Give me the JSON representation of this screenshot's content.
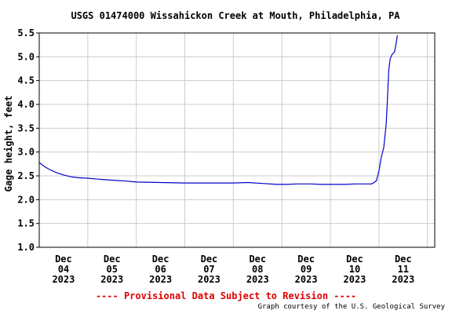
{
  "chart_data": {
    "type": "line",
    "title": "USGS 01474000 Wissahickon Creek at Mouth, Philadelphia, PA",
    "ylabel": "Gage height, feet",
    "xlabel": "",
    "ylim": [
      1.0,
      5.5
    ],
    "yticks": [
      "1.0",
      "1.5",
      "2.0",
      "2.5",
      "3.0",
      "3.5",
      "4.0",
      "4.5",
      "5.0",
      "5.5"
    ],
    "xlim_days": [
      0,
      8.15
    ],
    "xticks": [
      {
        "day": 0.5,
        "l1": "Dec",
        "l2": "04",
        "l3": "2023"
      },
      {
        "day": 1.5,
        "l1": "Dec",
        "l2": "05",
        "l3": "2023"
      },
      {
        "day": 2.5,
        "l1": "Dec",
        "l2": "06",
        "l3": "2023"
      },
      {
        "day": 3.5,
        "l1": "Dec",
        "l2": "07",
        "l3": "2023"
      },
      {
        "day": 4.5,
        "l1": "Dec",
        "l2": "08",
        "l3": "2023"
      },
      {
        "day": 5.5,
        "l1": "Dec",
        "l2": "09",
        "l3": "2023"
      },
      {
        "day": 6.5,
        "l1": "Dec",
        "l2": "10",
        "l3": "2023"
      },
      {
        "day": 7.5,
        "l1": "Dec",
        "l2": "11",
        "l3": "2023"
      }
    ],
    "grid": true,
    "series": [
      {
        "color": "#0000cc",
        "points": [
          [
            0.0,
            2.78
          ],
          [
            0.1,
            2.7
          ],
          [
            0.2,
            2.64
          ],
          [
            0.35,
            2.57
          ],
          [
            0.5,
            2.52
          ],
          [
            0.65,
            2.48
          ],
          [
            0.8,
            2.46
          ],
          [
            1.0,
            2.45
          ],
          [
            1.2,
            2.43
          ],
          [
            1.5,
            2.41
          ],
          [
            1.8,
            2.39
          ],
          [
            2.0,
            2.37
          ],
          [
            2.5,
            2.36
          ],
          [
            3.0,
            2.35
          ],
          [
            3.5,
            2.35
          ],
          [
            4.0,
            2.35
          ],
          [
            4.3,
            2.36
          ],
          [
            4.6,
            2.34
          ],
          [
            4.9,
            2.32
          ],
          [
            5.1,
            2.32
          ],
          [
            5.3,
            2.33
          ],
          [
            5.6,
            2.33
          ],
          [
            5.8,
            2.32
          ],
          [
            6.0,
            2.32
          ],
          [
            6.3,
            2.32
          ],
          [
            6.5,
            2.33
          ],
          [
            6.7,
            2.33
          ],
          [
            6.85,
            2.33
          ],
          [
            6.9,
            2.36
          ],
          [
            6.95,
            2.4
          ],
          [
            7.0,
            2.6
          ],
          [
            7.05,
            2.9
          ],
          [
            7.1,
            3.1
          ],
          [
            7.15,
            3.6
          ],
          [
            7.18,
            4.2
          ],
          [
            7.2,
            4.7
          ],
          [
            7.23,
            4.95
          ],
          [
            7.27,
            5.05
          ],
          [
            7.32,
            5.1
          ],
          [
            7.35,
            5.25
          ],
          [
            7.38,
            5.45
          ]
        ]
      }
    ],
    "footer": "---- Provisional Data Subject to Revision ----",
    "credit": "Graph courtesy of the U.S. Geological Survey"
  }
}
